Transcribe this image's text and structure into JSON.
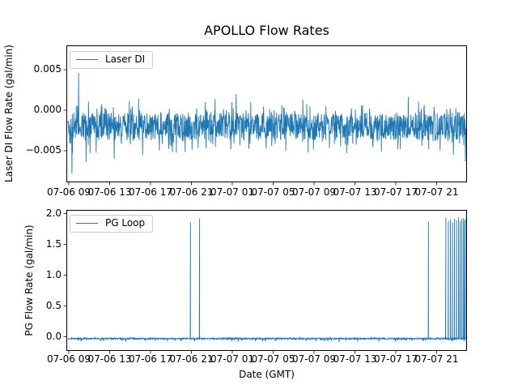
{
  "title": "APOLLO Flow Rates",
  "chart_data": {
    "type": "line",
    "line_color": "#1f77b4",
    "x_axis": {
      "label": "Date (GMT)",
      "tick_hours": [
        0,
        4,
        8,
        12,
        16,
        20,
        24,
        28,
        32,
        36
      ],
      "tick_labels": [
        "07-06 09",
        "07-06 13",
        "07-06 17",
        "07-06 21",
        "07-07 01",
        "07-07 05",
        "07-07 09",
        "07-07 13",
        "07-07 17",
        "07-07 21"
      ],
      "xlim_hours": [
        -0.24,
        38.97
      ],
      "data_range_hours": [
        -0.08,
        38.89
      ]
    },
    "subplots": [
      {
        "name": "laser_di",
        "legend": "Laser DI",
        "ylabel": "Laser DI Flow Rate (gal/min)",
        "ytick_labels": [
          "0.005",
          "0.000",
          "−0.005"
        ],
        "ytick_values": [
          0.005,
          0.0,
          -0.005
        ],
        "ylim": [
          -0.0089,
          0.008
        ],
        "series": {
          "baseline": -0.002,
          "amp": 0.0017,
          "tail_prob": 0.28,
          "tail_amp": 0.0021,
          "tail2_prob": 0.02,
          "tail2_amp": 0.0028,
          "tail_mode": "both",
          "n": 1500,
          "seed": 42
        },
        "extremes": [
          {
            "hour": 0.3,
            "value": -0.0078
          },
          {
            "hour": 0.95,
            "value": 0.0046
          },
          {
            "hour": 1.7,
            "value": -0.0064
          },
          {
            "hour": 38.8,
            "value": -0.0063
          }
        ]
      },
      {
        "name": "pg_loop",
        "legend": "PG Loop",
        "ylabel": "PG Flow Rate (gal/min)",
        "ytick_labels": [
          "2.0",
          "1.5",
          "1.0",
          "0.5",
          "0.0"
        ],
        "ytick_values": [
          2.0,
          1.5,
          1.0,
          0.5,
          0.0
        ],
        "ylim": [
          -0.23,
          2.06
        ],
        "series": {
          "baseline": -0.03,
          "amp": 0.012,
          "tail_prob": 0.05,
          "tail_amp": 0.05,
          "tail2_prob": 0.0,
          "tail2_amp": 0.0,
          "tail_mode": "down",
          "n": 1500,
          "seed": 99
        },
        "spikes": [
          {
            "hour": 11.9,
            "value": 1.86
          },
          {
            "hour": 12.8,
            "value": 1.92
          },
          {
            "hour": 35.2,
            "value": 1.87
          },
          {
            "hour": 36.9,
            "value": 1.93
          },
          {
            "hour": 37.15,
            "value": 1.88
          },
          {
            "hour": 37.35,
            "value": 1.91
          },
          {
            "hour": 37.55,
            "value": 1.86
          },
          {
            "hour": 37.75,
            "value": 1.92
          },
          {
            "hour": 37.95,
            "value": 1.89
          },
          {
            "hour": 38.15,
            "value": 1.94
          },
          {
            "hour": 38.3,
            "value": 1.88
          },
          {
            "hour": 38.45,
            "value": 1.91
          },
          {
            "hour": 38.6,
            "value": 1.93
          },
          {
            "hour": 38.72,
            "value": 1.89
          },
          {
            "hour": 38.82,
            "value": 1.92
          }
        ]
      }
    ]
  }
}
